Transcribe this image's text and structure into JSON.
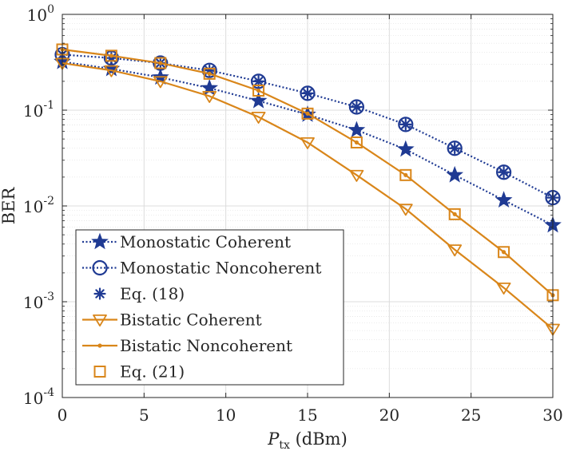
{
  "chart_data": {
    "type": "line",
    "title": "",
    "xlabel_main": "P",
    "xlabel_sub": "tx",
    "xlabel_unit": " (dBm)",
    "ylabel": "BER",
    "xlim": [
      0,
      30
    ],
    "ylim": [
      0.0001,
      1
    ],
    "yscale": "log",
    "grid": true,
    "legend_position": "bottom-left",
    "x_ticks": [
      0,
      5,
      10,
      15,
      20,
      25,
      30
    ],
    "x_tick_labels": [
      "0",
      "5",
      "10",
      "15",
      "20",
      "25",
      "30"
    ],
    "y_ticks": [
      {
        "value": 1,
        "base": "10",
        "exp": "0"
      },
      {
        "value": 0.1,
        "base": "10",
        "exp": "-1"
      },
      {
        "value": 0.01,
        "base": "10",
        "exp": "-2"
      },
      {
        "value": 0.001,
        "base": "10",
        "exp": "-3"
      },
      {
        "value": 0.0001,
        "base": "10",
        "exp": "-4"
      }
    ],
    "x": [
      0,
      3,
      6,
      9,
      12,
      15,
      18,
      21,
      24,
      27,
      30
    ],
    "series": [
      {
        "name": "Monostatic Coherent",
        "color": "#1f3a93",
        "line": "dotted",
        "marker": "star",
        "values": [
          0.32,
          0.27,
          0.22,
          0.17,
          0.125,
          0.09,
          0.062,
          0.039,
          0.021,
          0.0115,
          0.0063
        ]
      },
      {
        "name": "Monostatic Noncoherent",
        "color": "#1f3a93",
        "line": "dotted",
        "marker": "circle",
        "values": [
          0.38,
          0.35,
          0.31,
          0.26,
          0.2,
          0.15,
          0.108,
          0.071,
          0.04,
          0.0225,
          0.0122
        ]
      },
      {
        "name": "Eq. (18)",
        "color": "#1f3a93",
        "line": "none",
        "marker": "asterisk",
        "values": [
          0.38,
          0.35,
          0.31,
          0.26,
          0.2,
          0.15,
          0.108,
          0.071,
          0.04,
          0.0225,
          0.0122
        ]
      },
      {
        "name": "Bistatic Coherent",
        "color": "#d9861a",
        "line": "solid",
        "marker": "triangle-down",
        "values": [
          0.31,
          0.26,
          0.2,
          0.14,
          0.085,
          0.046,
          0.021,
          0.0093,
          0.0035,
          0.0014,
          0.00052
        ]
      },
      {
        "name": "Bistatic Noncoherent",
        "color": "#d9861a",
        "line": "solid",
        "marker": "dot",
        "values": [
          0.43,
          0.37,
          0.31,
          0.24,
          0.16,
          0.092,
          0.046,
          0.021,
          0.0082,
          0.0033,
          0.00117
        ]
      },
      {
        "name": "Eq. (21)",
        "color": "#d9861a",
        "line": "none",
        "marker": "square",
        "values": [
          0.43,
          0.37,
          0.31,
          0.24,
          0.16,
          0.092,
          0.046,
          0.021,
          0.0082,
          0.0033,
          0.00117
        ]
      }
    ]
  }
}
